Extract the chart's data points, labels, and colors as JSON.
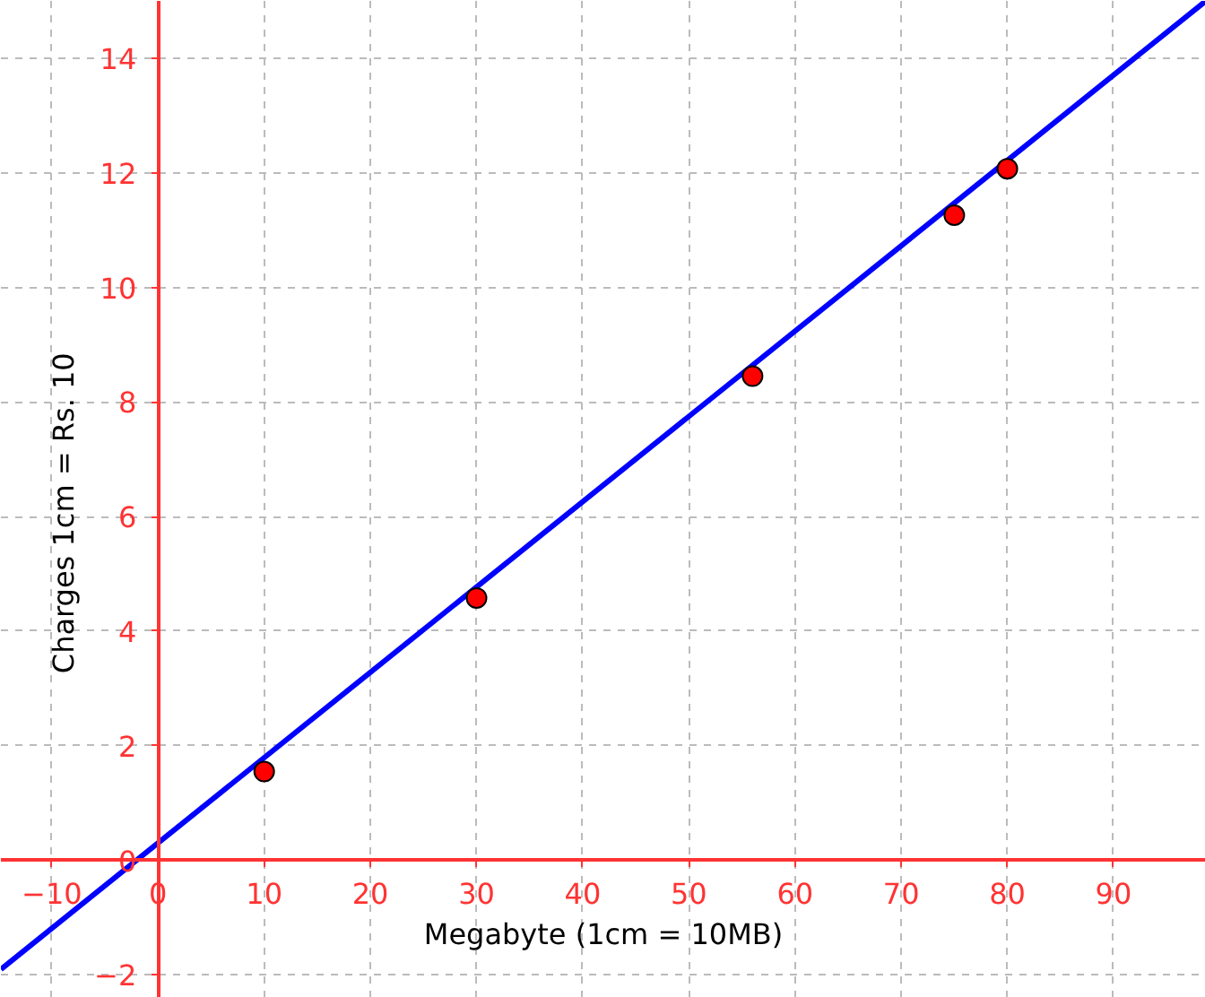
{
  "chart_data": {
    "type": "scatter",
    "xlabel": "Megabyte (1cm = 10MB)",
    "ylabel": "Charges 1cm  =  Rs.  10",
    "xlim": [
      -14.8,
      98.7
    ],
    "ylim": [
      -2.4,
      15.0
    ],
    "xticks": [
      -10,
      0,
      10,
      20,
      30,
      40,
      50,
      60,
      70,
      80,
      90
    ],
    "yticks": [
      -2,
      0,
      2,
      4,
      6,
      8,
      10,
      12,
      14
    ],
    "grid": true,
    "marker": "circle",
    "series": [
      {
        "type": "line",
        "marker": "none",
        "x": [
          -14.8,
          98.7
        ],
        "values": [
          -1.9,
          15.0
        ],
        "color": "#0000ff"
      },
      {
        "x": [
          10,
          30,
          56,
          75,
          80
        ],
        "values": [
          1.55,
          4.58,
          8.45,
          11.26,
          12.07
        ],
        "color": "#ff0000"
      }
    ]
  }
}
